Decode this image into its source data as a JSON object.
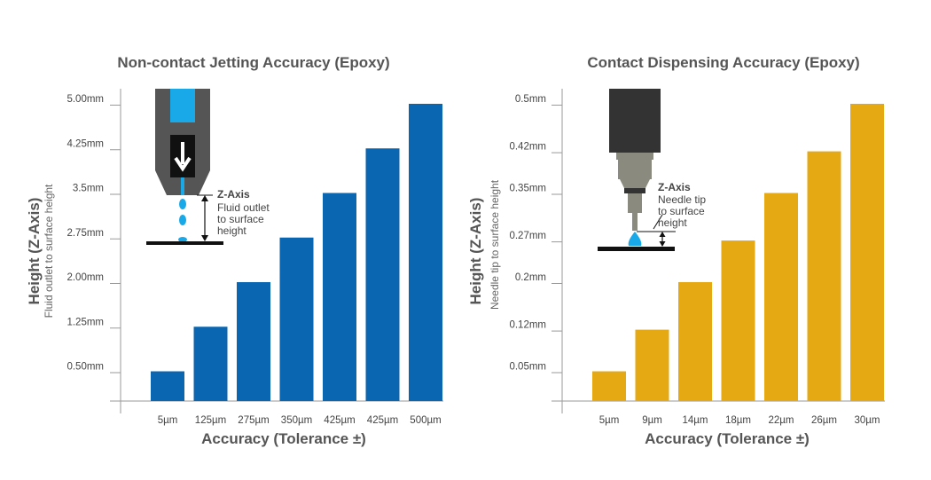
{
  "chart_data": [
    {
      "type": "bar",
      "title": "Non-contact Jetting Accuracy (Epoxy)",
      "ylabel": "Height (Z-Axis)",
      "ylabel_sub": "Fluid outlet to surface height",
      "xlabel": "Accuracy (Tolerance ±)",
      "categories": [
        "5µm",
        "125µm",
        "275µm",
        "350µm",
        "425µm",
        "425µm",
        "500µm"
      ],
      "values": [
        0.5,
        1.25,
        2.0,
        2.75,
        3.5,
        4.25,
        5.0
      ],
      "yticks": [
        "5.00mm",
        "4.25mm",
        "3.5mm",
        "2.75mm",
        "2.00mm",
        "1.25mm",
        "0.50mm"
      ],
      "ytick_values": [
        5.0,
        4.25,
        3.5,
        2.75,
        2.0,
        1.25,
        0.5
      ],
      "ylim": [
        0,
        5.3
      ],
      "color": "#0a66b0",
      "grid": false,
      "annotation": {
        "title": "Z-Axis",
        "lines": [
          "Fluid outlet",
          "to surface",
          "height"
        ]
      }
    },
    {
      "type": "bar",
      "title": "Contact Dispensing Accuracy (Epoxy)",
      "ylabel": "Height (Z-Axis)",
      "ylabel_sub": "Needle tip to surface height",
      "xlabel": "Accuracy (Tolerance ±)",
      "categories": [
        "5µm",
        "9µm",
        "14µm",
        "18µm",
        "22µm",
        "26µm",
        "30µm"
      ],
      "values": [
        0.05,
        0.12,
        0.2,
        0.27,
        0.35,
        0.42,
        0.5
      ],
      "yticks": [
        "0.5mm",
        "0.42mm",
        "0.35mm",
        "0.27mm",
        "0.2mm",
        "0.12mm",
        "0.05mm"
      ],
      "ytick_values": [
        0.5,
        0.42,
        0.35,
        0.27,
        0.2,
        0.12,
        0.05
      ],
      "ylim": [
        0,
        0.53
      ],
      "color": "#e5a914",
      "grid": false,
      "annotation": {
        "title": "Z-Axis",
        "lines": [
          "Needle tip",
          "to surface",
          "height"
        ]
      }
    }
  ]
}
